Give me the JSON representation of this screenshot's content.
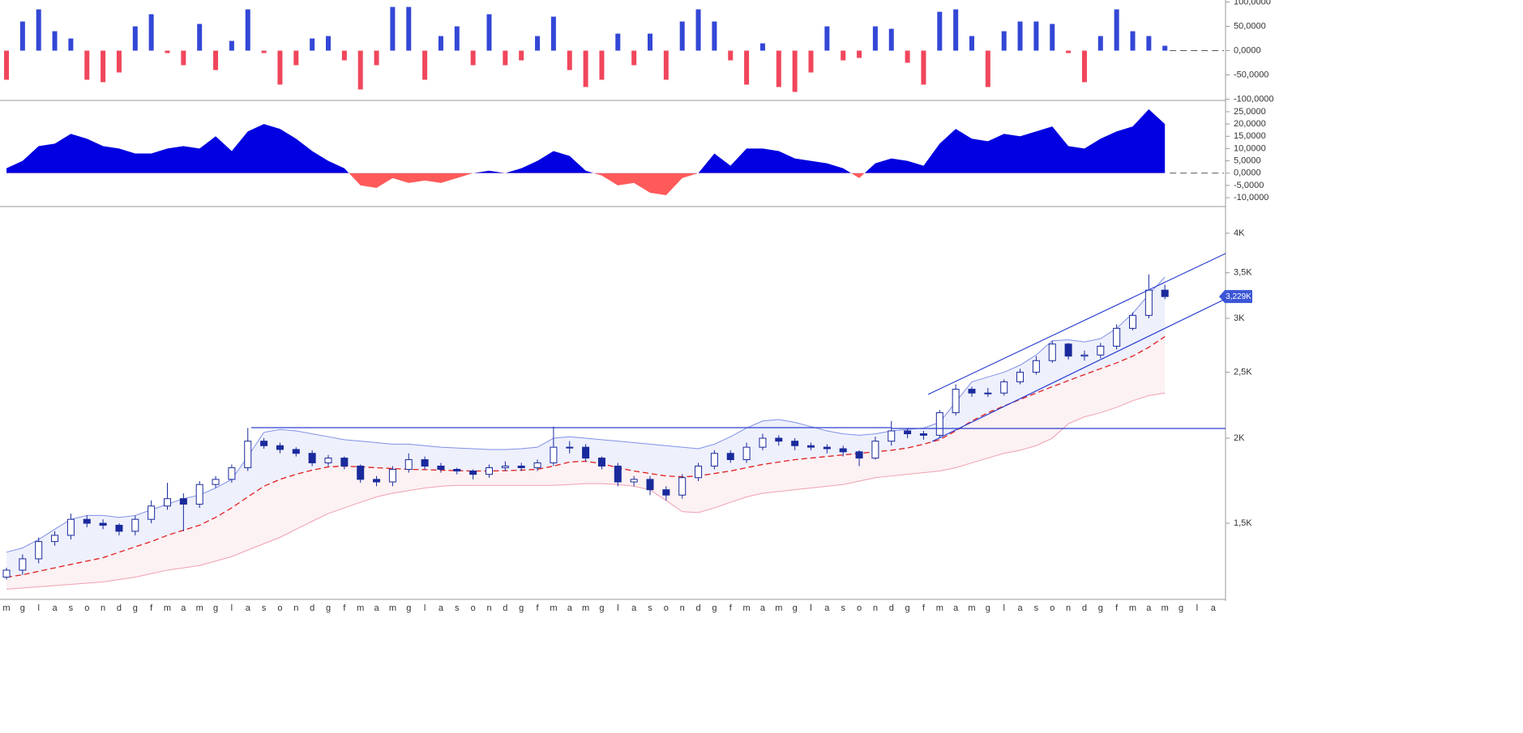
{
  "chart_data": [
    {
      "type": "bar",
      "values": [
        -60,
        60,
        85,
        40,
        25,
        -60,
        -65,
        -45,
        50,
        75,
        -5,
        -30,
        55,
        -40,
        20,
        85,
        -5,
        -70,
        -30,
        25,
        30,
        -20,
        -80,
        -30,
        90,
        90,
        -60,
        30,
        50,
        -30,
        75,
        -30,
        -20,
        30,
        70,
        -40,
        -75,
        -60,
        35,
        -30,
        35,
        -60,
        60,
        85,
        60,
        -20,
        -70,
        15,
        -75,
        -85,
        -45,
        50,
        -20,
        -15,
        50,
        45,
        -25,
        -70,
        80,
        85,
        30,
        -75,
        40,
        60,
        60,
        55,
        -5,
        -65,
        30,
        85,
        40,
        30,
        10,
        null,
        null,
        null
      ],
      "colors": {
        "positive": "#3347d6",
        "negative": "#f0465c"
      },
      "ylim": [
        -102.6,
        104.3
      ],
      "yticks": [
        {
          "value": 100,
          "label": "100,0000"
        },
        {
          "value": 50,
          "label": "50,0000"
        },
        {
          "value": 0,
          "label": "0,0000"
        },
        {
          "value": -50,
          "label": "-50,0000"
        },
        {
          "value": -100,
          "label": "-100,0000"
        }
      ]
    },
    {
      "type": "area",
      "values": [
        2,
        5,
        11,
        12,
        16,
        14,
        11,
        10,
        8,
        8,
        10,
        11,
        10,
        15,
        9,
        17,
        20,
        18,
        14,
        9,
        5,
        2,
        -5,
        -6,
        -2,
        -4,
        -3,
        -4,
        -2,
        0,
        1,
        0,
        2,
        5,
        9,
        7,
        1,
        -1,
        -5,
        -4,
        -8,
        -9,
        -2,
        0,
        8,
        3,
        10,
        10,
        9,
        6,
        5,
        4,
        2,
        -2,
        4,
        6,
        5,
        3,
        12,
        18,
        14,
        13,
        16,
        15,
        17,
        19,
        11,
        10,
        14,
        17,
        19,
        26,
        20,
        null,
        null,
        null
      ],
      "colors": {
        "positive": "#0000e0",
        "negative": "#ff5a5a"
      },
      "ylim": [
        -13.6,
        29.6
      ],
      "yticks": [
        {
          "value": 25,
          "label": "25,0000"
        },
        {
          "value": 20,
          "label": "20,0000"
        },
        {
          "value": 15,
          "label": "15,0000"
        },
        {
          "value": 10,
          "label": "10,0000"
        },
        {
          "value": 5,
          "label": "5,0000"
        },
        {
          "value": 0,
          "label": "0,0000"
        },
        {
          "value": -5,
          "label": "-5,0000"
        },
        {
          "value": -10,
          "label": "-10,0000"
        }
      ]
    },
    {
      "type": "candlestick",
      "categories": [
        "m",
        "g",
        "l",
        "a",
        "s",
        "o",
        "n",
        "d",
        "g",
        "f",
        "m",
        "a",
        "m",
        "g",
        "l",
        "a",
        "s",
        "o",
        "n",
        "d",
        "g",
        "f",
        "m",
        "a",
        "m",
        "g",
        "l",
        "a",
        "s",
        "o",
        "n",
        "d",
        "g",
        "f",
        "m",
        "a",
        "m",
        "g",
        "l",
        "a",
        "s",
        "o",
        "n",
        "d",
        "g",
        "f",
        "m",
        "a",
        "m",
        "g",
        "l",
        "a",
        "s",
        "o",
        "n",
        "d",
        "g",
        "f",
        "m",
        "a",
        "m",
        "g",
        "l",
        "a",
        "s",
        "o",
        "n",
        "d",
        "g",
        "f",
        "m",
        "a",
        "m",
        "g",
        "l",
        "a"
      ],
      "open": [
        1250,
        1280,
        1330,
        1410,
        1440,
        1520,
        1500,
        1490,
        1460,
        1520,
        1590,
        1630,
        1600,
        1710,
        1740,
        1810,
        1980,
        1950,
        1925,
        1900,
        1840,
        1870,
        1820,
        1740,
        1725,
        1800,
        1860,
        1820,
        1800,
        1790,
        1770,
        1810,
        1820,
        1810,
        1840,
        1940,
        1940,
        1870,
        1820,
        1725,
        1740,
        1680,
        1650,
        1750,
        1820,
        1900,
        1860,
        1940,
        2000,
        1980,
        1950,
        1940,
        1930,
        1910,
        1870,
        1980,
        2050,
        2030,
        2020,
        2180,
        2360,
        2330,
        2330,
        2420,
        2500,
        2600,
        2750,
        2640,
        2650,
        2730,
        2900,
        3030,
        3300,
        null,
        null,
        null
      ],
      "high": [
        1290,
        1350,
        1430,
        1460,
        1550,
        1540,
        1520,
        1500,
        1540,
        1620,
        1720,
        1660,
        1730,
        1760,
        1830,
        2070,
        2000,
        1970,
        1940,
        1920,
        1890,
        1880,
        1830,
        1760,
        1820,
        1900,
        1880,
        1840,
        1810,
        1800,
        1830,
        1850,
        1840,
        1860,
        2080,
        1980,
        1960,
        1880,
        1840,
        1760,
        1760,
        1700,
        1770,
        1840,
        1920,
        1920,
        1970,
        2030,
        2020,
        2000,
        1970,
        1960,
        1950,
        1920,
        2010,
        2120,
        2070,
        2050,
        2200,
        2400,
        2380,
        2370,
        2440,
        2530,
        2640,
        2780,
        2760,
        2690,
        2760,
        2940,
        3060,
        3480,
        3360,
        null,
        null,
        null
      ],
      "low": [
        1240,
        1260,
        1310,
        1390,
        1420,
        1480,
        1470,
        1440,
        1440,
        1500,
        1570,
        1460,
        1580,
        1690,
        1720,
        1790,
        1930,
        1900,
        1880,
        1820,
        1820,
        1800,
        1720,
        1700,
        1700,
        1780,
        1800,
        1780,
        1770,
        1740,
        1750,
        1790,
        1790,
        1790,
        1820,
        1900,
        1850,
        1800,
        1700,
        1700,
        1650,
        1620,
        1630,
        1730,
        1800,
        1840,
        1840,
        1920,
        1950,
        1920,
        1920,
        1900,
        1880,
        1820,
        1860,
        1950,
        2000,
        1990,
        2000,
        2160,
        2300,
        2300,
        2310,
        2400,
        2480,
        2580,
        2610,
        2600,
        2620,
        2700,
        2880,
        3000,
        3200,
        null,
        null,
        null
      ],
      "close": [
        1280,
        1330,
        1410,
        1440,
        1520,
        1500,
        1490,
        1460,
        1520,
        1590,
        1630,
        1600,
        1710,
        1740,
        1810,
        1980,
        1950,
        1925,
        1900,
        1840,
        1870,
        1820,
        1740,
        1725,
        1800,
        1860,
        1820,
        1800,
        1790,
        1770,
        1810,
        1820,
        1810,
        1840,
        1940,
        1940,
        1870,
        1820,
        1725,
        1740,
        1680,
        1650,
        1750,
        1820,
        1900,
        1860,
        1940,
        2000,
        1980,
        1950,
        1940,
        1930,
        1910,
        1870,
        1980,
        2050,
        2030,
        2020,
        2180,
        2360,
        2330,
        2330,
        2420,
        2500,
        2600,
        2750,
        2640,
        2650,
        2730,
        2900,
        3030,
        3300,
        3229,
        null,
        null,
        null
      ],
      "upper": [
        1360,
        1380,
        1420,
        1470,
        1520,
        1540,
        1540,
        1530,
        1540,
        1570,
        1600,
        1630,
        1650,
        1690,
        1740,
        1880,
        2040,
        2060,
        2050,
        2030,
        2010,
        1990,
        1980,
        1970,
        1960,
        1960,
        1950,
        1940,
        1935,
        1930,
        1925,
        1925,
        1930,
        1940,
        2000,
        2010,
        2000,
        1990,
        1980,
        1970,
        1960,
        1950,
        1940,
        1930,
        1960,
        2010,
        2070,
        2120,
        2130,
        2110,
        2080,
        2050,
        2030,
        2020,
        2030,
        2050,
        2060,
        2070,
        2110,
        2260,
        2420,
        2460,
        2500,
        2560,
        2650,
        2780,
        2790,
        2770,
        2800,
        2900,
        3050,
        3250,
        3450,
        null,
        null,
        null
      ],
      "middle": [
        1250,
        1260,
        1275,
        1290,
        1305,
        1320,
        1335,
        1360,
        1385,
        1410,
        1440,
        1465,
        1490,
        1530,
        1580,
        1640,
        1700,
        1740,
        1770,
        1795,
        1815,
        1820,
        1815,
        1810,
        1805,
        1800,
        1798,
        1795,
        1792,
        1790,
        1790,
        1792,
        1795,
        1800,
        1820,
        1845,
        1850,
        1835,
        1810,
        1790,
        1775,
        1760,
        1755,
        1760,
        1775,
        1790,
        1810,
        1830,
        1845,
        1860,
        1870,
        1880,
        1890,
        1900,
        1910,
        1920,
        1935,
        1960,
        1990,
        2050,
        2120,
        2180,
        2230,
        2280,
        2330,
        2380,
        2430,
        2480,
        2530,
        2580,
        2640,
        2720,
        2820,
        null,
        null,
        null
      ],
      "lower": [
        1200,
        1205,
        1210,
        1215,
        1220,
        1225,
        1230,
        1240,
        1250,
        1265,
        1280,
        1290,
        1300,
        1320,
        1340,
        1370,
        1400,
        1430,
        1470,
        1510,
        1550,
        1580,
        1610,
        1640,
        1660,
        1675,
        1690,
        1700,
        1705,
        1705,
        1705,
        1705,
        1705,
        1705,
        1705,
        1710,
        1715,
        1715,
        1710,
        1700,
        1680,
        1620,
        1560,
        1555,
        1580,
        1610,
        1640,
        1660,
        1670,
        1680,
        1690,
        1700,
        1710,
        1730,
        1750,
        1760,
        1770,
        1780,
        1790,
        1810,
        1840,
        1870,
        1900,
        1920,
        1950,
        2000,
        2100,
        2150,
        2180,
        2220,
        2270,
        2310,
        2330,
        null,
        null,
        null
      ],
      "colors": {
        "up": "#ffffff",
        "down": "#1a2a9c",
        "edge": "#1a2a9c",
        "upper": "#8090e8",
        "middle": "#e02020",
        "lower": "#f0a0b0",
        "upper_fill": "#eef0fc",
        "lower_fill": "#fcf1f3"
      },
      "log_scale": true,
      "ylim": [
        1166,
        4366
      ],
      "yticks": [
        {
          "value": 4000,
          "label": "4K"
        },
        {
          "value": 3500,
          "label": "3,5K"
        },
        {
          "value": 3000,
          "label": "3K"
        },
        {
          "value": 2500,
          "label": "2,5K"
        },
        {
          "value": 2000,
          "label": "2K"
        },
        {
          "value": 1500,
          "label": "1,5K"
        }
      ],
      "last_label": "3,229K"
    }
  ]
}
